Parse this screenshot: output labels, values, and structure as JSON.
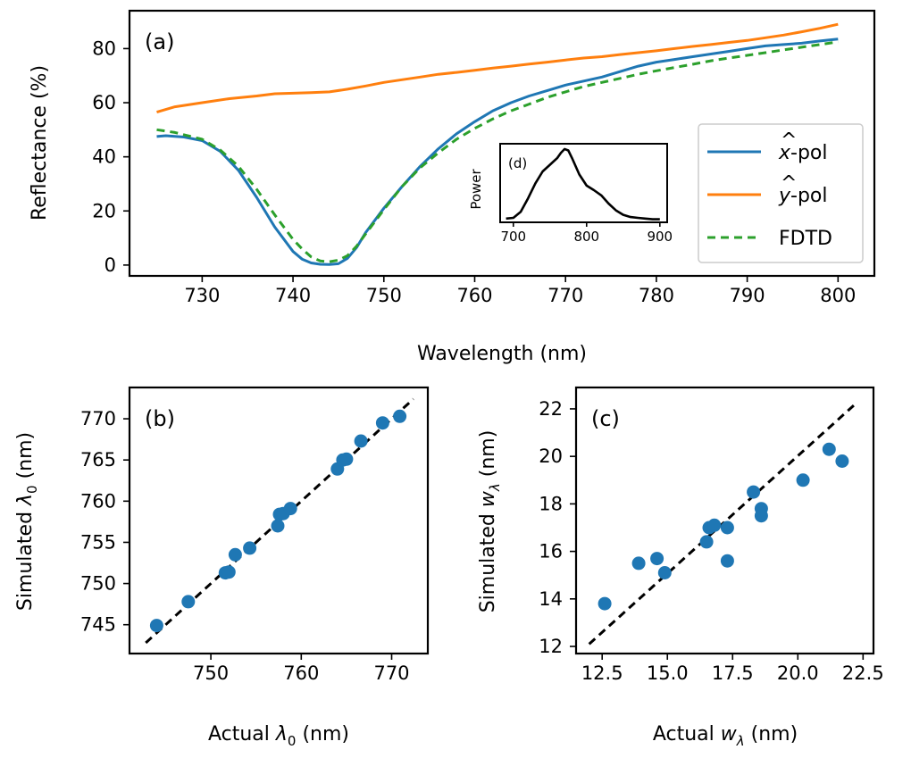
{
  "chart_data": [
    {
      "id": "a",
      "type": "line",
      "panel_label": "(a)",
      "xlabel": "Wavelength (nm)",
      "ylabel": "Reflectance (%)",
      "xlim": [
        722,
        804
      ],
      "ylim": [
        -4,
        94
      ],
      "xticks": [
        730,
        740,
        750,
        760,
        770,
        780,
        790,
        800
      ],
      "yticks": [
        0,
        20,
        40,
        60,
        80
      ],
      "legend_position": "lower-right",
      "series": [
        {
          "name": "x-pol",
          "legend_main": "x",
          "legend_hat": "^",
          "legend_suffix": "-pol",
          "color": "#1f77b4",
          "dash": "",
          "x": [
            725,
            726,
            728,
            730,
            732,
            734,
            736,
            738,
            740,
            741,
            742,
            743,
            744,
            745,
            746,
            747,
            748,
            750,
            752,
            754,
            756,
            758,
            760,
            762,
            764,
            766,
            768,
            770,
            772,
            774,
            776,
            778,
            780,
            782,
            784,
            786,
            788,
            790,
            792,
            794,
            796,
            798,
            800
          ],
          "y": [
            47.5,
            47.8,
            47.3,
            46.0,
            42.0,
            35.0,
            25.0,
            14.0,
            5.0,
            2.2,
            0.8,
            0.3,
            0.2,
            0.5,
            2.5,
            6.5,
            12.0,
            21.0,
            29.0,
            36.5,
            43.0,
            48.5,
            53.0,
            57.0,
            60.0,
            62.5,
            64.5,
            66.5,
            68.0,
            69.5,
            71.5,
            73.5,
            75.0,
            76.0,
            77.0,
            78.0,
            79.0,
            80.0,
            81.0,
            81.5,
            82.0,
            82.8,
            83.5
          ]
        },
        {
          "name": "y-pol",
          "legend_main": "y",
          "legend_hat": "^",
          "legend_suffix": "-pol",
          "color": "#ff7f0e",
          "dash": "",
          "x": [
            725,
            727,
            730,
            733,
            736,
            738,
            740,
            742,
            744,
            746,
            748,
            750,
            752,
            754,
            756,
            758,
            760,
            762,
            764,
            766,
            768,
            770,
            772,
            774,
            776,
            778,
            780,
            782,
            784,
            786,
            788,
            790,
            792,
            794,
            796,
            798,
            800
          ],
          "y": [
            56.5,
            58.5,
            60.0,
            61.5,
            62.5,
            63.3,
            63.5,
            63.7,
            64.0,
            65.0,
            66.2,
            67.5,
            68.5,
            69.5,
            70.5,
            71.2,
            72.0,
            72.8,
            73.5,
            74.3,
            75.0,
            75.8,
            76.5,
            77.0,
            77.8,
            78.5,
            79.2,
            80.0,
            80.8,
            81.5,
            82.3,
            83.0,
            84.0,
            85.0,
            86.2,
            87.5,
            89.0
          ]
        },
        {
          "name": "FDTD",
          "legend_main": "FDTD",
          "legend_hat": "",
          "legend_suffix": "",
          "color": "#2ca02c",
          "dash": "9,6",
          "x": [
            725,
            727,
            730,
            732,
            734,
            736,
            738,
            740,
            741,
            742,
            743,
            744,
            745,
            746,
            747,
            748,
            750,
            752,
            754,
            756,
            758,
            760,
            762,
            764,
            766,
            768,
            770,
            772,
            774,
            776,
            778,
            780,
            782,
            784,
            786,
            788,
            790,
            792,
            794,
            796,
            798,
            800
          ],
          "y": [
            50.0,
            49.0,
            46.5,
            42.5,
            36.5,
            28.0,
            18.5,
            9.5,
            6.0,
            3.0,
            1.5,
            1.2,
            1.8,
            3.5,
            7.0,
            11.5,
            20.5,
            29.0,
            36.0,
            41.5,
            46.5,
            50.5,
            54.0,
            57.0,
            59.5,
            62.0,
            64.0,
            66.0,
            67.5,
            69.0,
            70.5,
            71.8,
            73.0,
            74.2,
            75.5,
            76.5,
            77.5,
            78.5,
            79.5,
            80.5,
            81.5,
            82.5
          ]
        }
      ],
      "inset": {
        "panel_label": "(d)",
        "ylabel": "Power",
        "xlim": [
          682,
          910
        ],
        "ylim": [
          0,
          1.05
        ],
        "xticks": [
          700,
          800,
          900
        ],
        "series": {
          "color": "#000000",
          "x": [
            690,
            700,
            710,
            720,
            730,
            740,
            750,
            760,
            765,
            770,
            775,
            780,
            790,
            800,
            810,
            820,
            830,
            840,
            850,
            860,
            870,
            880,
            890,
            900
          ],
          "y": [
            0.05,
            0.06,
            0.14,
            0.32,
            0.52,
            0.68,
            0.77,
            0.86,
            0.93,
            0.98,
            0.96,
            0.86,
            0.64,
            0.49,
            0.43,
            0.36,
            0.25,
            0.16,
            0.1,
            0.07,
            0.06,
            0.05,
            0.04,
            0.04
          ]
        }
      }
    },
    {
      "id": "b",
      "type": "scatter",
      "panel_label": "(b)",
      "xlabel_pre": "Actual ",
      "xlabel_sym": "λ",
      "xlabel_sub": "0",
      "xlabel_post": " (nm)",
      "ylabel_pre": "Simulated ",
      "ylabel_sym": "λ",
      "ylabel_sub": "0",
      "ylabel_post": " (nm)",
      "xlim": [
        741,
        774
      ],
      "ylim": [
        741.5,
        773.8
      ],
      "xticks": [
        750,
        760,
        770
      ],
      "yticks": [
        745,
        750,
        755,
        760,
        765,
        770
      ],
      "marker_color": "#1f77b4",
      "x": [
        744.0,
        747.5,
        751.6,
        752.0,
        752.7,
        754.3,
        757.4,
        757.6,
        758.0,
        758.8,
        764.0,
        764.6,
        765.0,
        766.6,
        769.0,
        770.9
      ],
      "y": [
        744.9,
        747.8,
        751.3,
        751.4,
        753.5,
        754.3,
        757.0,
        758.4,
        758.5,
        759.1,
        763.9,
        765.0,
        765.1,
        767.3,
        769.5,
        770.3
      ],
      "reference_line": {
        "x": [
          742.8,
          772.4
        ],
        "y": [
          742.8,
          772.4
        ],
        "color": "#000000",
        "dash": "9,6"
      }
    },
    {
      "id": "c",
      "type": "scatter",
      "panel_label": "(c)",
      "xlabel_pre": "Actual ",
      "xlabel_sym": "w",
      "xlabel_sub": "λ",
      "xlabel_post": " (nm)",
      "ylabel_pre": "Simulated ",
      "ylabel_sym": "w",
      "ylabel_sub": "λ",
      "ylabel_post": " (nm)",
      "xlim": [
        11.5,
        22.9
      ],
      "ylim": [
        11.7,
        22.9
      ],
      "xticks": [
        12.5,
        15.0,
        17.5,
        20.0,
        22.5
      ],
      "xtick_labels": [
        "12.5",
        "15.0",
        "17.5",
        "20.0",
        "22.5"
      ],
      "yticks": [
        12,
        14,
        16,
        18,
        20,
        22
      ],
      "marker_color": "#1f77b4",
      "x": [
        12.6,
        13.9,
        14.6,
        14.9,
        16.5,
        16.6,
        16.8,
        17.3,
        17.3,
        18.3,
        18.6,
        18.6,
        20.2,
        21.2,
        21.7
      ],
      "y": [
        13.8,
        15.5,
        15.7,
        15.1,
        16.4,
        17.0,
        17.1,
        17.0,
        15.6,
        18.5,
        17.8,
        17.5,
        19.0,
        20.3,
        19.8
      ],
      "reference_line": {
        "x": [
          12.0,
          22.2
        ],
        "y": [
          12.1,
          22.2
        ],
        "color": "#000000",
        "dash": "9,6"
      }
    }
  ]
}
